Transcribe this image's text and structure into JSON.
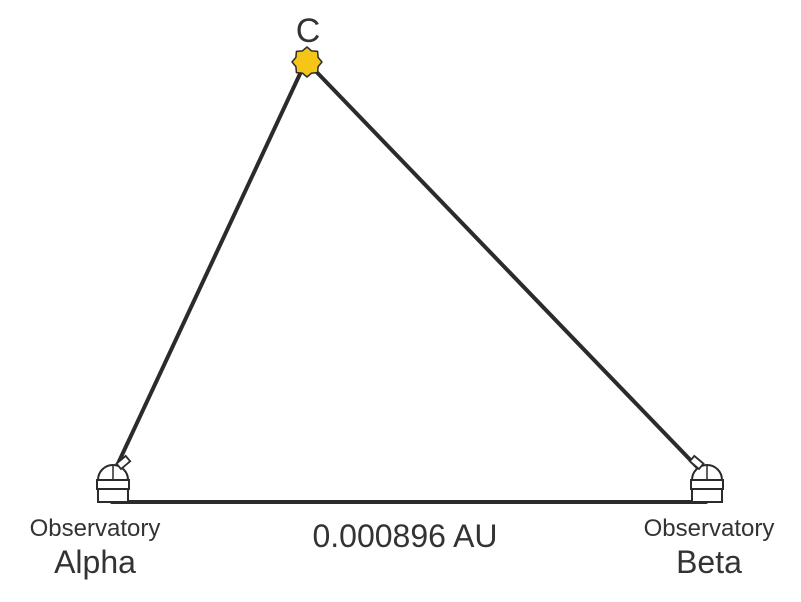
{
  "star": {
    "label": "C",
    "icon": "star-icon",
    "color": "#f5c518"
  },
  "baseline": {
    "distance_text": "0.000896 AU"
  },
  "observatories": [
    {
      "id": "alpha",
      "line1": "Observatory",
      "line2": "Alpha",
      "icon": "observatory-icon"
    },
    {
      "id": "beta",
      "line1": "Observatory",
      "line2": "Beta",
      "icon": "observatory-icon"
    }
  ],
  "colors": {
    "line": "#2b2b2b",
    "text": "#333333",
    "star": "#f5c518"
  }
}
